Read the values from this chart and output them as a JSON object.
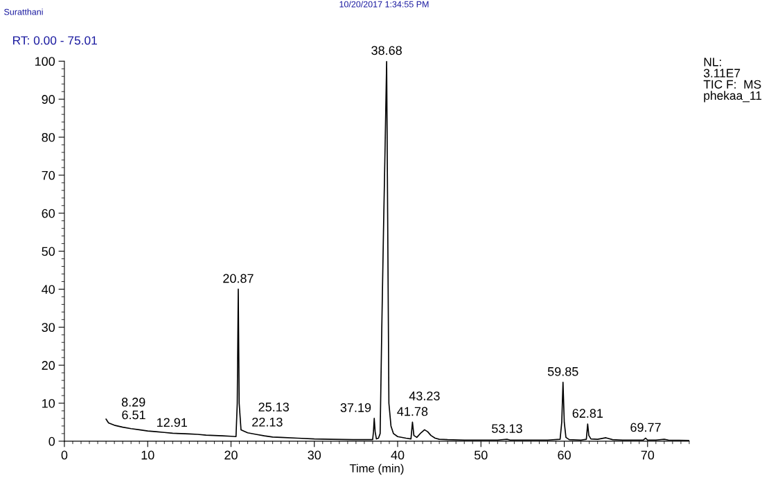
{
  "chart_data": {
    "type": "line",
    "xlabel": "Time (min)",
    "series": [
      {
        "color": "#000000",
        "x": [
          5.0,
          5.3,
          6,
          7,
          8,
          9,
          10,
          11,
          12,
          13,
          14,
          15,
          16,
          17,
          18,
          19,
          20,
          20.6,
          20.75,
          20.87,
          20.98,
          21.2,
          22,
          23,
          24,
          25,
          26,
          28,
          30,
          32,
          35,
          37.0,
          37.1,
          37.19,
          37.3,
          37.45,
          37.7,
          37.9,
          38.1,
          38.3,
          38.5,
          38.68,
          38.8,
          38.95,
          39.2,
          39.5,
          40,
          41,
          41.6,
          41.78,
          41.95,
          42.3,
          42.8,
          43.23,
          43.6,
          44,
          44.5,
          45,
          46,
          48,
          50,
          52,
          53.13,
          53.5,
          56,
          58,
          59.5,
          59.7,
          59.85,
          60.0,
          60.2,
          60.6,
          62,
          62.65,
          62.81,
          62.95,
          63.2,
          64,
          65,
          65.8,
          67,
          69.5,
          69.77,
          70.0,
          71,
          72,
          72.5,
          75
        ],
        "values": [
          5.8,
          4.8,
          4.2,
          3.7,
          3.3,
          3.0,
          2.7,
          2.5,
          2.3,
          2.1,
          2.0,
          1.9,
          1.8,
          1.6,
          1.5,
          1.4,
          1.3,
          1.2,
          10,
          40,
          10,
          3,
          2.2,
          1.8,
          1.4,
          1.1,
          1.0,
          0.8,
          0.6,
          0.5,
          0.4,
          0.4,
          2.5,
          6.0,
          2.5,
          0.6,
          0.8,
          2,
          30,
          55,
          78,
          100,
          60,
          10,
          4,
          2,
          1.2,
          0.8,
          0.6,
          5.0,
          1.5,
          1.0,
          2.2,
          3.0,
          2.5,
          1.5,
          0.8,
          0.5,
          0.4,
          0.3,
          0.3,
          0.3,
          0.5,
          0.3,
          0.3,
          0.3,
          0.5,
          5,
          15.5,
          5,
          1,
          0.4,
          0.3,
          0.5,
          4.5,
          1.5,
          0.6,
          0.5,
          0.9,
          0.4,
          0.3,
          0.3,
          0.8,
          0.3,
          0.3,
          0.5,
          0.3,
          0.2
        ]
      }
    ],
    "xlim": [
      0,
      75
    ],
    "xticks": [
      0,
      10,
      20,
      30,
      40,
      50,
      60,
      70
    ],
    "ylim": [
      0,
      100
    ],
    "yticks": [
      0,
      10,
      20,
      30,
      40,
      50,
      60,
      70,
      80,
      90,
      100
    ],
    "grid": false,
    "legend": false,
    "annotations": [
      {
        "text": "6.51",
        "x": 6.51,
        "y": 4.1
      },
      {
        "text": "8.29",
        "x": 8.29,
        "y": 3.4
      },
      {
        "text": "12.91",
        "x": 12.91,
        "y": 2.1
      },
      {
        "text": "20.87",
        "x": 20.87,
        "y": 40
      },
      {
        "text": "22.13",
        "x": 22.13,
        "y": 2.2
      },
      {
        "text": "25.13",
        "x": 25.13,
        "y": 1.1
      },
      {
        "text": "37.19",
        "x": 37.19,
        "y": 6.0
      },
      {
        "text": "38.68",
        "x": 38.68,
        "y": 100
      },
      {
        "text": "41.78",
        "x": 41.78,
        "y": 5.0
      },
      {
        "text": "43.23",
        "x": 43.23,
        "y": 3.0
      },
      {
        "text": "53.13",
        "x": 53.13,
        "y": 0.5
      },
      {
        "text": "59.85",
        "x": 59.85,
        "y": 15.5
      },
      {
        "text": "62.81",
        "x": 62.81,
        "y": 4.5
      },
      {
        "text": "69.77",
        "x": 69.77,
        "y": 0.8
      },
      "Suratthani",
      "10/20/2017 1:34:55 PM",
      "RT: 0.00 - 75.01",
      "NL:\n3.11E7\nTIC F:  MS\nphekaa_11"
    ]
  }
}
